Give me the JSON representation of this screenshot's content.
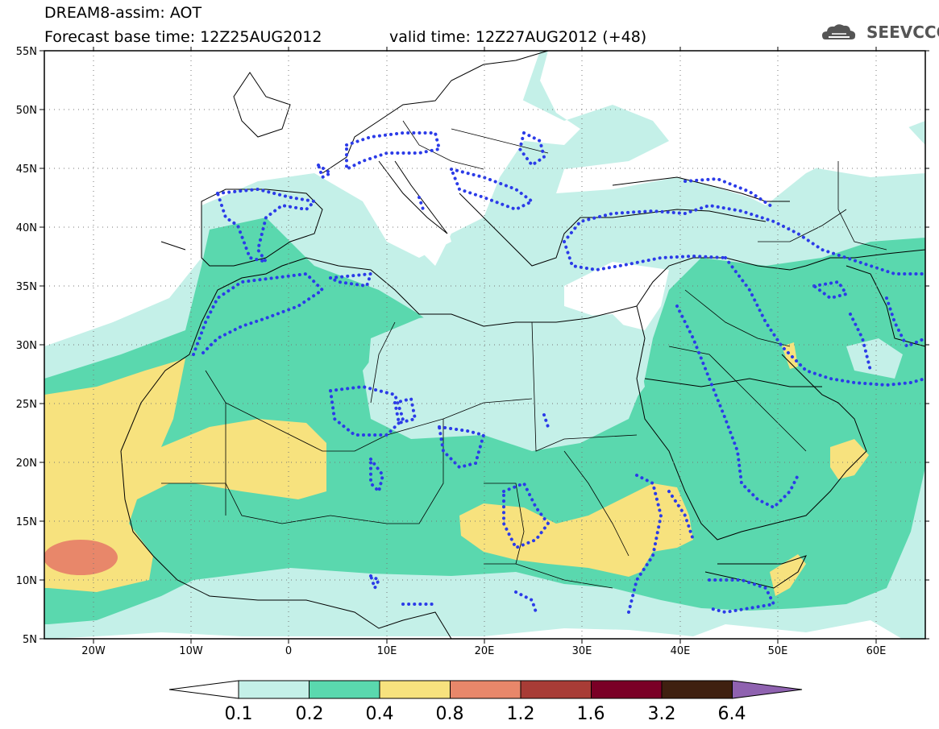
{
  "title": {
    "line1": "DREAM8-assim: AOT",
    "line2": "Forecast base time: 12Z25AUG2012",
    "valid": "valid time: 12Z27AUG2012 (+48)"
  },
  "logo": {
    "text": "SEEVCCC",
    "icon": "cloud-icon"
  },
  "map": {
    "lon_range": [
      -25,
      65
    ],
    "lat_range": [
      5,
      55
    ],
    "lon_ticks": [
      "20W",
      "10W",
      "0",
      "10E",
      "20E",
      "30E",
      "40E",
      "50E",
      "60E"
    ],
    "lat_ticks": [
      "55N",
      "50N",
      "45N",
      "40N",
      "35N",
      "30N",
      "25N",
      "20N",
      "15N",
      "10N",
      "5N"
    ],
    "grid": "dotted"
  },
  "legend": {
    "labels": [
      "0.1",
      "0.2",
      "0.4",
      "0.8",
      "1.2",
      "1.6",
      "3.2",
      "6.4"
    ],
    "colors": [
      "#ffffff",
      "#c4f0e8",
      "#5ad8ae",
      "#f7e27e",
      "#e8876a",
      "#a83c36",
      "#7a0026",
      "#3f2010",
      "#8f62b0"
    ]
  },
  "contour_color": "#2b3be8"
}
